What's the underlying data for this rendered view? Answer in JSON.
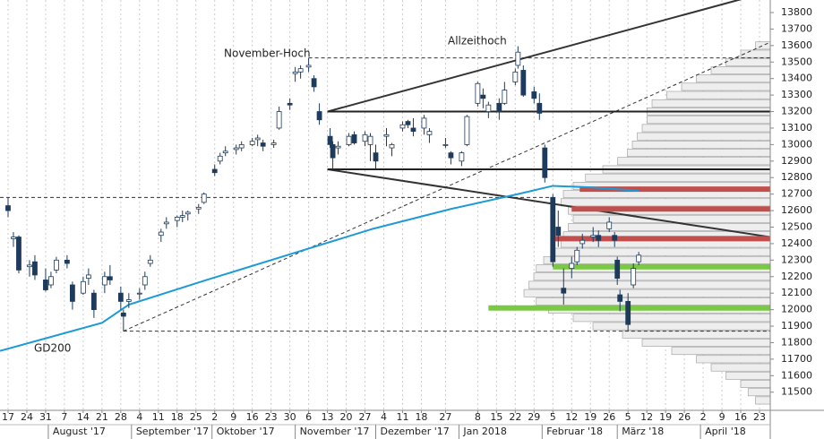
{
  "chart_data": {
    "type": "candlestick",
    "xlim": [
      "2017-07-14",
      "2018-04-27"
    ],
    "ylim": [
      11390,
      13876
    ],
    "yticks": [
      11500,
      11600,
      11700,
      11800,
      11900,
      12000,
      12100,
      12200,
      12300,
      12400,
      12500,
      12600,
      12700,
      12800,
      12900,
      13000,
      13100,
      13200,
      13300,
      13400,
      13500,
      13600,
      13700,
      13800
    ],
    "xticks": [
      {
        "value": "2017-07-17",
        "label": "17"
      },
      {
        "value": "2017-07-24",
        "label": "24"
      },
      {
        "value": "2017-07-31",
        "label": "31"
      },
      {
        "value": "2017-08-07",
        "label": "7"
      },
      {
        "value": "2017-08-14",
        "label": "14"
      },
      {
        "value": "2017-08-21",
        "label": "21"
      },
      {
        "value": "2017-08-28",
        "label": "28"
      },
      {
        "value": "2017-09-04",
        "label": "4"
      },
      {
        "value": "2017-09-11",
        "label": "11"
      },
      {
        "value": "2017-09-18",
        "label": "18"
      },
      {
        "value": "2017-09-25",
        "label": "25"
      },
      {
        "value": "2017-10-02",
        "label": "2"
      },
      {
        "value": "2017-10-09",
        "label": "9"
      },
      {
        "value": "2017-10-16",
        "label": "16"
      },
      {
        "value": "2017-10-23",
        "label": "23"
      },
      {
        "value": "2017-10-30",
        "label": "30"
      },
      {
        "value": "2017-11-06",
        "label": "6"
      },
      {
        "value": "2017-11-13",
        "label": "13"
      },
      {
        "value": "2017-11-20",
        "label": "20"
      },
      {
        "value": "2017-11-27",
        "label": "27"
      },
      {
        "value": "2017-12-04",
        "label": "4"
      },
      {
        "value": "2017-12-11",
        "label": "11"
      },
      {
        "value": "2017-12-18",
        "label": "18"
      },
      {
        "value": "2017-12-27",
        "label": "27"
      },
      {
        "value": "2018-01-08",
        "label": "8"
      },
      {
        "value": "2018-01-15",
        "label": "15"
      },
      {
        "value": "2018-01-22",
        "label": "22"
      },
      {
        "value": "2018-01-29",
        "label": "29"
      },
      {
        "value": "2018-02-05",
        "label": "5"
      },
      {
        "value": "2018-02-12",
        "label": "12"
      },
      {
        "value": "2018-02-19",
        "label": "19"
      },
      {
        "value": "2018-02-26",
        "label": "26"
      },
      {
        "value": "2018-03-05",
        "label": "5"
      },
      {
        "value": "2018-03-12",
        "label": "12"
      },
      {
        "value": "2018-03-19",
        "label": "19"
      },
      {
        "value": "2018-03-26",
        "label": "26"
      },
      {
        "value": "2018-04-02",
        "label": "2"
      },
      {
        "value": "2018-04-09",
        "label": "9"
      },
      {
        "value": "2018-04-16",
        "label": "16"
      },
      {
        "value": "2018-04-23",
        "label": "23"
      }
    ],
    "months": [
      {
        "value": "2017-08-01",
        "label": "August '17"
      },
      {
        "value": "2017-09-01",
        "label": "September '17"
      },
      {
        "value": "2017-10-01",
        "label": "Oktober '17"
      },
      {
        "value": "2017-11-01",
        "label": "November '17"
      },
      {
        "value": "2017-12-01",
        "label": "Dezember '17"
      },
      {
        "value": "2018-01-01",
        "label": "Jan 2018"
      },
      {
        "value": "2018-02-01",
        "label": "Februar '18"
      },
      {
        "value": "2018-03-01",
        "label": "März '18"
      },
      {
        "value": "2018-04-01",
        "label": "April '18"
      }
    ],
    "up_color": "#ffffff",
    "down_color": "#1f3b5c",
    "grid": true,
    "x": [
      "2017-07-17",
      "2017-07-19",
      "2017-07-21",
      "2017-07-25",
      "2017-07-27",
      "2017-07-31",
      "2017-08-02",
      "2017-08-04",
      "2017-08-08",
      "2017-08-10",
      "2017-08-14",
      "2017-08-16",
      "2017-08-18",
      "2017-08-22",
      "2017-08-24",
      "2017-08-28",
      "2017-08-29",
      "2017-08-31",
      "2017-09-04",
      "2017-09-06",
      "2017-09-08",
      "2017-09-12",
      "2017-09-14",
      "2017-09-18",
      "2017-09-20",
      "2017-09-22",
      "2017-09-26",
      "2017-09-28",
      "2017-10-02",
      "2017-10-04",
      "2017-10-06",
      "2017-10-10",
      "2017-10-12",
      "2017-10-16",
      "2017-10-18",
      "2017-10-20",
      "2017-10-24",
      "2017-10-26",
      "2017-10-30",
      "2017-11-01",
      "2017-11-03",
      "2017-11-06",
      "2017-11-08",
      "2017-11-10",
      "2017-11-14",
      "2017-11-15",
      "2017-11-17",
      "2017-11-21",
      "2017-11-23",
      "2017-11-27",
      "2017-11-29",
      "2017-12-01",
      "2017-12-05",
      "2017-12-07",
      "2017-12-11",
      "2017-12-13",
      "2017-12-15",
      "2017-12-19",
      "2017-12-21",
      "2017-12-27",
      "2017-12-29",
      "2018-01-02",
      "2018-01-04",
      "2018-01-08",
      "2018-01-10",
      "2018-01-12",
      "2018-01-16",
      "2018-01-18",
      "2018-01-22",
      "2018-01-23",
      "2018-01-25",
      "2018-01-29",
      "2018-01-31",
      "2018-02-02",
      "2018-02-05",
      "2018-02-07",
      "2018-02-09",
      "2018-02-12",
      "2018-02-14",
      "2018-02-16",
      "2018-02-20",
      "2018-02-22",
      "2018-02-26",
      "2018-02-28",
      "2018-03-01",
      "2018-03-02",
      "2018-03-05",
      "2018-03-07",
      "2018-03-09"
    ],
    "ohlc": [
      [
        12630,
        12680,
        12560,
        12600
      ],
      [
        12430,
        12470,
        12380,
        12440
      ],
      [
        12440,
        12450,
        12220,
        12240
      ],
      [
        12260,
        12300,
        12200,
        12270
      ],
      [
        12290,
        12330,
        12180,
        12210
      ],
      [
        12180,
        12250,
        12110,
        12120
      ],
      [
        12150,
        12230,
        12130,
        12200
      ],
      [
        12240,
        12320,
        12220,
        12300
      ],
      [
        12300,
        12330,
        12250,
        12280
      ],
      [
        12150,
        12170,
        12000,
        12050
      ],
      [
        12100,
        12200,
        12090,
        12170
      ],
      [
        12190,
        12250,
        12150,
        12210
      ],
      [
        12100,
        12120,
        11950,
        12000
      ],
      [
        12150,
        12230,
        12100,
        12200
      ],
      [
        12200,
        12270,
        12150,
        12180
      ],
      [
        12100,
        12140,
        12000,
        12050
      ],
      [
        11980,
        12000,
        11870,
        11960
      ],
      [
        12050,
        12100,
        12010,
        12060
      ],
      [
        12100,
        12130,
        12060,
        12100
      ],
      [
        12150,
        12230,
        12120,
        12200
      ],
      [
        12280,
        12330,
        12260,
        12300
      ],
      [
        12450,
        12490,
        12410,
        12470
      ],
      [
        12520,
        12560,
        12490,
        12530
      ],
      [
        12540,
        12570,
        12500,
        12560
      ],
      [
        12560,
        12600,
        12530,
        12570
      ],
      [
        12580,
        12600,
        12540,
        12590
      ],
      [
        12610,
        12640,
        12580,
        12620
      ],
      [
        12650,
        12710,
        12640,
        12700
      ],
      [
        12850,
        12880,
        12810,
        12830
      ],
      [
        12900,
        12950,
        12880,
        12930
      ],
      [
        12950,
        12990,
        12930,
        12960
      ],
      [
        12970,
        13000,
        12940,
        12980
      ],
      [
        12980,
        13020,
        12960,
        13000
      ],
      [
        13000,
        13040,
        12990,
        13020
      ],
      [
        13030,
        13060,
        12990,
        13040
      ],
      [
        13010,
        13030,
        12960,
        12990
      ],
      [
        13000,
        13030,
        12980,
        13010
      ],
      [
        13100,
        13230,
        13090,
        13200
      ],
      [
        13250,
        13280,
        13210,
        13240
      ],
      [
        13430,
        13470,
        13380,
        13440
      ],
      [
        13440,
        13480,
        13400,
        13460
      ],
      [
        13470,
        13525,
        13440,
        13480
      ],
      [
        13400,
        13420,
        13320,
        13350
      ],
      [
        13200,
        13250,
        13120,
        13150
      ],
      [
        13050,
        13100,
        12980,
        13000
      ],
      [
        13000,
        13020,
        12850,
        12920
      ],
      [
        12980,
        13020,
        12940,
        12990
      ],
      [
        13000,
        13070,
        12990,
        13050
      ],
      [
        13060,
        13080,
        13000,
        13010
      ],
      [
        13020,
        13080,
        12990,
        13060
      ],
      [
        13000,
        13070,
        12900,
        13050
      ],
      [
        12950,
        13000,
        12850,
        12900
      ],
      [
        13050,
        13100,
        12990,
        13060
      ],
      [
        12980,
        13010,
        12930,
        13000
      ],
      [
        13100,
        13140,
        13080,
        13120
      ],
      [
        13140,
        13150,
        13100,
        13120
      ],
      [
        13100,
        13160,
        13050,
        13080
      ],
      [
        13100,
        13180,
        13060,
        13160
      ],
      [
        13060,
        13100,
        13010,
        13080
      ],
      [
        13000,
        13040,
        12980,
        13000
      ],
      [
        12950,
        12960,
        12880,
        12920
      ],
      [
        12900,
        12960,
        12870,
        12950
      ],
      [
        13000,
        13180,
        12990,
        13170
      ],
      [
        13250,
        13380,
        13230,
        13370
      ],
      [
        13300,
        13340,
        13220,
        13280
      ],
      [
        13200,
        13260,
        13160,
        13240
      ],
      [
        13250,
        13280,
        13150,
        13200
      ],
      [
        13250,
        13380,
        13240,
        13330
      ],
      [
        13380,
        13460,
        13360,
        13440
      ],
      [
        13480,
        13596,
        13460,
        13560
      ],
      [
        13450,
        13480,
        13290,
        13300
      ],
      [
        13320,
        13350,
        13250,
        13280
      ],
      [
        13250,
        13310,
        13150,
        13190
      ],
      [
        12980,
        13000,
        12770,
        12800
      ],
      [
        12680,
        12700,
        12260,
        12290
      ],
      [
        12500,
        12600,
        12380,
        12450
      ],
      [
        12130,
        12250,
        12030,
        12100
      ],
      [
        12250,
        12320,
        12190,
        12280
      ],
      [
        12290,
        12380,
        12270,
        12360
      ],
      [
        12400,
        12460,
        12370,
        12420
      ],
      [
        12440,
        12500,
        12410,
        12450
      ],
      [
        12450,
        12480,
        12380,
        12420
      ],
      [
        12490,
        12560,
        12470,
        12530
      ],
      [
        12450,
        12470,
        12380,
        12420
      ],
      [
        12300,
        12320,
        12150,
        12190
      ],
      [
        12090,
        12120,
        11990,
        12050
      ],
      [
        12050,
        12100,
        11870,
        11910
      ],
      [
        12150,
        12280,
        12130,
        12250
      ],
      [
        12290,
        12350,
        12270,
        12330
      ]
    ],
    "gd200": {
      "name": "GD200",
      "color": "#1a9ad6",
      "x": [
        "2017-07-14",
        "2017-08-21",
        "2017-08-31",
        "2017-09-29",
        "2017-10-31",
        "2017-11-30",
        "2017-12-29",
        "2018-01-23",
        "2018-02-05",
        "2018-02-20",
        "2018-03-09"
      ],
      "values": [
        11750,
        11920,
        12030,
        12180,
        12340,
        12490,
        12610,
        12700,
        12750,
        12740,
        12720
      ]
    },
    "volume_profile": {
      "color": "#eeeeee",
      "levels": [
        11450,
        11500,
        11550,
        11600,
        11650,
        11700,
        11750,
        11800,
        11850,
        11900,
        11950,
        12000,
        12050,
        12100,
        12150,
        12200,
        12250,
        12300,
        12350,
        12400,
        12450,
        12500,
        12550,
        12600,
        12650,
        12700,
        12750,
        12800,
        12850,
        12900,
        12950,
        13000,
        13050,
        13100,
        13150,
        13200,
        13250,
        13300,
        13350,
        13400,
        13450,
        13500,
        13550,
        13600
      ],
      "values": [
        6,
        9,
        12,
        18,
        24,
        30,
        40,
        52,
        60,
        72,
        80,
        90,
        95,
        100,
        98,
        96,
        95,
        92,
        88,
        85,
        84,
        82,
        80,
        82,
        85,
        84,
        80,
        75,
        68,
        62,
        58,
        56,
        54,
        52,
        50,
        50,
        48,
        42,
        36,
        30,
        24,
        18,
        12,
        6
      ]
    },
    "lines": [
      {
        "style": "solid",
        "color": "#333333",
        "width": 2,
        "x": [
          "2017-11-13",
          "2018-04-16"
        ],
        "values": [
          13200,
          13880
        ]
      },
      {
        "style": "solid",
        "color": "#333333",
        "width": 2,
        "x": [
          "2017-11-13",
          "2018-04-27"
        ],
        "values": [
          12850,
          12440
        ]
      },
      {
        "style": "dashed",
        "color": "#333333",
        "width": 1,
        "x": [
          "2017-08-29",
          "2018-04-27"
        ],
        "values": [
          11870,
          13620
        ]
      },
      {
        "style": "solid",
        "color": "#222222",
        "width": 2,
        "x": [
          "2017-11-13",
          "2018-04-27"
        ],
        "values": [
          13200,
          13200
        ]
      },
      {
        "style": "solid",
        "color": "#222222",
        "width": 2,
        "x": [
          "2017-11-13",
          "2018-04-27"
        ],
        "values": [
          12850,
          12850
        ]
      },
      {
        "style": "dashed",
        "color": "#333333",
        "width": 1,
        "x": [
          "2017-11-06",
          "2018-04-27"
        ],
        "values": [
          13525,
          13525
        ]
      },
      {
        "style": "dashed",
        "color": "#333333",
        "width": 1,
        "x": [
          "2017-07-14",
          "2018-02-05"
        ],
        "values": [
          12680,
          12680
        ]
      },
      {
        "style": "dashed",
        "color": "#333333",
        "width": 1,
        "x": [
          "2017-08-29",
          "2018-04-27"
        ],
        "values": [
          11870,
          11870
        ]
      },
      {
        "style": "solid",
        "color": "#c0504d",
        "width": 6,
        "x": [
          "2018-02-15",
          "2018-04-27"
        ],
        "values": [
          12730,
          12730
        ]
      },
      {
        "style": "solid",
        "color": "#c0504d",
        "width": 6,
        "x": [
          "2018-02-12",
          "2018-04-27"
        ],
        "values": [
          12610,
          12610
        ]
      },
      {
        "style": "solid",
        "color": "#c0504d",
        "width": 6,
        "x": [
          "2018-02-05",
          "2018-04-27"
        ],
        "values": [
          12430,
          12430
        ]
      },
      {
        "style": "solid",
        "color": "#7ac943",
        "width": 6,
        "x": [
          "2018-02-05",
          "2018-04-27"
        ],
        "values": [
          12260,
          12260
        ]
      },
      {
        "style": "solid",
        "color": "#7ac943",
        "width": 6,
        "x": [
          "2018-01-12",
          "2018-04-27"
        ],
        "values": [
          12010,
          12010
        ]
      }
    ],
    "annotations": [
      {
        "text": "November-Hoch"
      },
      {
        "text": "Allzeithoch"
      },
      {
        "text": "GD200"
      }
    ]
  }
}
